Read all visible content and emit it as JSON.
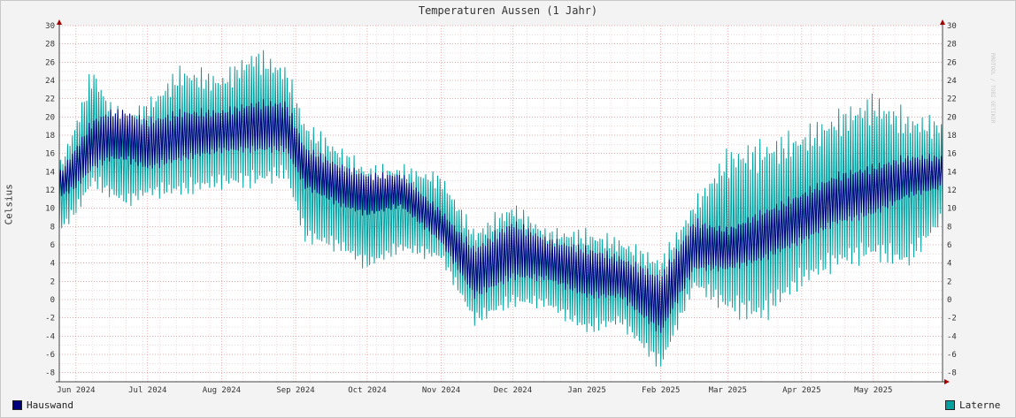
{
  "chart_data": {
    "type": "line",
    "title": "Temperaturen Aussen (1 Jahr)",
    "ylabel": "Celsius",
    "ylim": [
      -9,
      30
    ],
    "y_ticks": [
      30,
      28,
      26,
      24,
      22,
      20,
      18,
      16,
      14,
      12,
      10,
      8,
      6,
      4,
      2,
      0,
      -2,
      -4,
      -6,
      -8
    ],
    "x_start": "2024-05-25",
    "x_end": "2025-05-30",
    "x_ticks": [
      {
        "label": "Jun 2024",
        "date": "2024-06-01"
      },
      {
        "label": "Jul 2024",
        "date": "2024-07-01"
      },
      {
        "label": "Aug 2024",
        "date": "2024-08-01"
      },
      {
        "label": "Sep 2024",
        "date": "2024-09-01"
      },
      {
        "label": "Oct 2024",
        "date": "2024-10-01"
      },
      {
        "label": "Nov 2024",
        "date": "2024-11-01"
      },
      {
        "label": "Dec 2024",
        "date": "2024-12-01"
      },
      {
        "label": "Jan 2025",
        "date": "2025-01-01"
      },
      {
        "label": "Feb 2025",
        "date": "2025-02-01"
      },
      {
        "label": "Mar 2025",
        "date": "2025-03-01"
      },
      {
        "label": "Apr 2025",
        "date": "2025-04-01"
      },
      {
        "label": "May 2025",
        "date": "2025-05-01"
      }
    ],
    "grid": true,
    "legend_position": "bottom",
    "series": [
      {
        "name": "Hauswand",
        "color": "#00007f",
        "daily_range": [
          {
            "date": "2024-05-25",
            "min": 11,
            "max": 14
          },
          {
            "date": "2024-06-01",
            "min": 12,
            "max": 17
          },
          {
            "date": "2024-06-08",
            "min": 14,
            "max": 20
          },
          {
            "date": "2024-06-15",
            "min": 15,
            "max": 21
          },
          {
            "date": "2024-06-22",
            "min": 15,
            "max": 21
          },
          {
            "date": "2024-07-01",
            "min": 14,
            "max": 20
          },
          {
            "date": "2024-07-15",
            "min": 15,
            "max": 21
          },
          {
            "date": "2024-08-01",
            "min": 16,
            "max": 21
          },
          {
            "date": "2024-08-15",
            "min": 16,
            "max": 22
          },
          {
            "date": "2024-08-28",
            "min": 16,
            "max": 22
          },
          {
            "date": "2024-09-05",
            "min": 12,
            "max": 17
          },
          {
            "date": "2024-09-20",
            "min": 10,
            "max": 15
          },
          {
            "date": "2024-10-01",
            "min": 9,
            "max": 14
          },
          {
            "date": "2024-10-15",
            "min": 10,
            "max": 14
          },
          {
            "date": "2024-11-01",
            "min": 6,
            "max": 10
          },
          {
            "date": "2024-11-15",
            "min": 0,
            "max": 6
          },
          {
            "date": "2024-12-01",
            "min": 2,
            "max": 9
          },
          {
            "date": "2024-12-15",
            "min": 2,
            "max": 7
          },
          {
            "date": "2025-01-01",
            "min": 0,
            "max": 6
          },
          {
            "date": "2025-01-15",
            "min": 0,
            "max": 5
          },
          {
            "date": "2025-02-01",
            "min": -4,
            "max": 3
          },
          {
            "date": "2025-02-15",
            "min": 3,
            "max": 9
          },
          {
            "date": "2025-03-01",
            "min": 3,
            "max": 8
          },
          {
            "date": "2025-03-15",
            "min": 4,
            "max": 10
          },
          {
            "date": "2025-04-01",
            "min": 6,
            "max": 12
          },
          {
            "date": "2025-04-15",
            "min": 8,
            "max": 14
          },
          {
            "date": "2025-05-01",
            "min": 9,
            "max": 15
          },
          {
            "date": "2025-05-15",
            "min": 11,
            "max": 16
          },
          {
            "date": "2025-05-30",
            "min": 12,
            "max": 16
          }
        ]
      },
      {
        "name": "Laterne",
        "color": "#00a0a0",
        "daily_range": [
          {
            "date": "2024-05-25",
            "min": 7,
            "max": 15
          },
          {
            "date": "2024-06-01",
            "min": 9,
            "max": 20
          },
          {
            "date": "2024-06-08",
            "min": 12,
            "max": 26
          },
          {
            "date": "2024-06-15",
            "min": 11,
            "max": 22
          },
          {
            "date": "2024-06-22",
            "min": 10,
            "max": 21
          },
          {
            "date": "2024-07-01",
            "min": 11,
            "max": 22
          },
          {
            "date": "2024-07-15",
            "min": 11,
            "max": 26
          },
          {
            "date": "2024-08-01",
            "min": 12,
            "max": 25
          },
          {
            "date": "2024-08-15",
            "min": 12,
            "max": 28
          },
          {
            "date": "2024-08-28",
            "min": 13,
            "max": 26
          },
          {
            "date": "2024-09-05",
            "min": 6,
            "max": 20
          },
          {
            "date": "2024-09-20",
            "min": 5,
            "max": 17
          },
          {
            "date": "2024-10-01",
            "min": 3,
            "max": 15
          },
          {
            "date": "2024-10-15",
            "min": 5,
            "max": 15
          },
          {
            "date": "2024-11-01",
            "min": 4,
            "max": 14
          },
          {
            "date": "2024-11-15",
            "min": -3,
            "max": 8
          },
          {
            "date": "2024-12-01",
            "min": -1,
            "max": 11
          },
          {
            "date": "2024-12-15",
            "min": -1,
            "max": 8
          },
          {
            "date": "2025-01-01",
            "min": -4,
            "max": 8
          },
          {
            "date": "2025-01-15",
            "min": -3,
            "max": 7
          },
          {
            "date": "2025-02-01",
            "min": -8,
            "max": 5
          },
          {
            "date": "2025-02-15",
            "min": 1,
            "max": 11
          },
          {
            "date": "2025-03-01",
            "min": -2,
            "max": 17
          },
          {
            "date": "2025-03-15",
            "min": -3,
            "max": 18
          },
          {
            "date": "2025-04-01",
            "min": 1,
            "max": 19
          },
          {
            "date": "2025-04-15",
            "min": 3,
            "max": 21
          },
          {
            "date": "2025-05-01",
            "min": 4,
            "max": 23
          },
          {
            "date": "2025-05-15",
            "min": 3,
            "max": 21
          },
          {
            "date": "2025-05-30",
            "min": 8,
            "max": 20
          }
        ]
      }
    ],
    "watermark": "RRDTOOL / TOBI OETIKER"
  }
}
